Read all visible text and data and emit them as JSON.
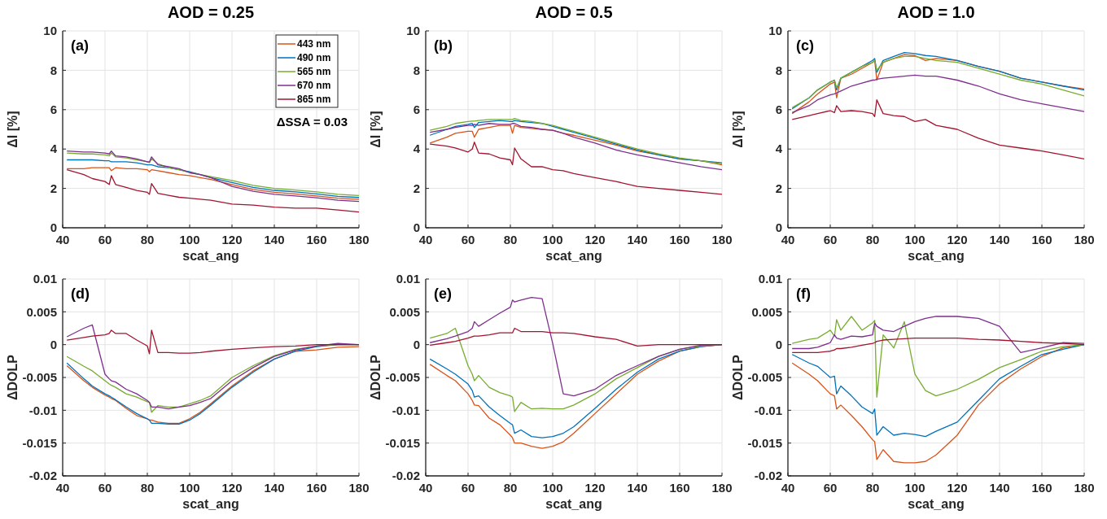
{
  "chart_data": [
    {
      "type": "line",
      "title": "AOD = 0.25",
      "xlabel": "scat_ang",
      "ylabel": "ΔI [%]",
      "annotations": [
        "(a)",
        "ΔSSA = 0.03"
      ],
      "legend": "top right",
      "grid": true,
      "x": [
        42,
        50,
        54,
        60,
        62,
        63,
        65,
        70,
        75,
        80,
        81,
        82,
        85,
        90,
        95,
        100,
        105,
        110,
        120,
        130,
        140,
        150,
        160,
        170,
        180
      ],
      "xlim": [
        40,
        180
      ],
      "xticks": [
        40,
        60,
        80,
        100,
        120,
        140,
        160,
        180
      ],
      "ylim": [
        0,
        10
      ],
      "yticks": [
        0,
        2,
        4,
        6,
        8,
        10
      ],
      "series": [
        {
          "name": "443 nm",
          "color": "#d95319",
          "values": [
            3.0,
            3.0,
            3.05,
            3.05,
            3.05,
            2.9,
            3.05,
            3.0,
            3.0,
            2.95,
            2.85,
            2.95,
            2.9,
            2.8,
            2.7,
            2.65,
            2.55,
            2.45,
            2.2,
            1.95,
            1.8,
            1.72,
            1.62,
            1.5,
            1.44
          ]
        },
        {
          "name": "490 nm",
          "color": "#0072bd",
          "values": [
            3.45,
            3.45,
            3.45,
            3.4,
            3.4,
            3.35,
            3.35,
            3.35,
            3.3,
            3.2,
            3.2,
            3.2,
            3.1,
            3.05,
            2.95,
            2.85,
            2.7,
            2.55,
            2.3,
            2.05,
            1.9,
            1.82,
            1.72,
            1.6,
            1.54
          ]
        },
        {
          "name": "565 nm",
          "color": "#77ac30",
          "values": [
            3.8,
            3.75,
            3.75,
            3.7,
            3.65,
            3.8,
            3.6,
            3.55,
            3.45,
            3.35,
            3.3,
            3.5,
            3.25,
            3.05,
            2.95,
            2.8,
            2.7,
            2.6,
            2.4,
            2.15,
            2.0,
            1.92,
            1.82,
            1.7,
            1.64
          ]
        },
        {
          "name": "670 nm",
          "color": "#7e2f8e",
          "values": [
            3.9,
            3.85,
            3.85,
            3.8,
            3.75,
            3.9,
            3.65,
            3.6,
            3.5,
            3.35,
            3.35,
            3.6,
            3.2,
            3.1,
            3.0,
            2.8,
            2.7,
            2.55,
            2.1,
            1.85,
            1.7,
            1.62,
            1.52,
            1.4,
            1.34
          ]
        },
        {
          "name": "865 nm",
          "color": "#a2142f",
          "values": [
            2.95,
            2.7,
            2.5,
            2.35,
            2.2,
            2.65,
            2.2,
            2.05,
            1.9,
            1.8,
            1.7,
            2.25,
            1.75,
            1.65,
            1.55,
            1.5,
            1.45,
            1.4,
            1.2,
            1.15,
            1.05,
            1.0,
            1.0,
            0.9,
            0.8
          ]
        }
      ]
    },
    {
      "type": "line",
      "title": "AOD = 0.5",
      "xlabel": "scat_ang",
      "ylabel": "ΔI [%]",
      "annotations": [
        "(b)"
      ],
      "grid": true,
      "x": [
        42,
        50,
        54,
        60,
        62,
        63,
        65,
        70,
        75,
        80,
        81,
        82,
        85,
        90,
        95,
        100,
        105,
        110,
        120,
        130,
        140,
        150,
        160,
        170,
        180
      ],
      "xlim": [
        40,
        180
      ],
      "xticks": [
        40,
        60,
        80,
        100,
        120,
        140,
        160,
        180
      ],
      "ylim": [
        0,
        10
      ],
      "yticks": [
        0,
        2,
        4,
        6,
        8,
        10
      ],
      "series": [
        {
          "color": "#d95319",
          "values": [
            4.3,
            4.6,
            4.8,
            4.9,
            4.9,
            4.6,
            5.0,
            5.1,
            5.2,
            5.2,
            4.8,
            5.2,
            5.1,
            5.05,
            5.0,
            4.95,
            4.8,
            4.7,
            4.45,
            4.2,
            3.9,
            3.7,
            3.5,
            3.4,
            3.2
          ]
        },
        {
          "color": "#0072bd",
          "values": [
            4.7,
            5.0,
            5.15,
            5.25,
            5.3,
            5.1,
            5.35,
            5.4,
            5.45,
            5.4,
            5.4,
            5.45,
            5.4,
            5.35,
            5.3,
            5.15,
            5.0,
            4.85,
            4.55,
            4.25,
            3.95,
            3.7,
            3.5,
            3.4,
            3.3
          ]
        },
        {
          "color": "#77ac30",
          "values": [
            4.95,
            5.15,
            5.3,
            5.4,
            5.42,
            5.42,
            5.45,
            5.5,
            5.5,
            5.5,
            5.5,
            5.55,
            5.45,
            5.4,
            5.3,
            5.2,
            5.05,
            4.9,
            4.6,
            4.3,
            4.0,
            3.75,
            3.55,
            3.4,
            3.25
          ]
        },
        {
          "color": "#7e2f8e",
          "values": [
            4.85,
            5.0,
            5.1,
            5.2,
            5.2,
            5.25,
            5.2,
            5.3,
            5.25,
            5.25,
            5.3,
            5.3,
            5.15,
            5.1,
            5.0,
            4.95,
            4.8,
            4.6,
            4.3,
            3.95,
            3.7,
            3.5,
            3.3,
            3.1,
            2.95
          ]
        },
        {
          "color": "#a2142f",
          "values": [
            4.25,
            4.15,
            4.05,
            3.85,
            4.0,
            4.35,
            3.8,
            3.75,
            3.55,
            3.45,
            3.2,
            4.05,
            3.5,
            3.1,
            3.1,
            2.95,
            2.9,
            2.75,
            2.55,
            2.35,
            2.1,
            2.0,
            1.9,
            1.8,
            1.7
          ]
        }
      ]
    },
    {
      "type": "line",
      "title": "AOD = 1.0",
      "xlabel": "scat_ang",
      "ylabel": "ΔI [%]",
      "annotations": [
        "(c)"
      ],
      "grid": true,
      "x": [
        42,
        50,
        54,
        60,
        62,
        63,
        65,
        70,
        75,
        80,
        81,
        82,
        85,
        90,
        95,
        100,
        105,
        110,
        120,
        130,
        140,
        150,
        160,
        170,
        180
      ],
      "xlim": [
        40,
        180
      ],
      "xticks": [
        40,
        60,
        80,
        100,
        120,
        140,
        160,
        180
      ],
      "ylim": [
        0,
        10
      ],
      "yticks": [
        0,
        2,
        4,
        6,
        8,
        10
      ],
      "series": [
        {
          "color": "#d95319",
          "values": [
            5.8,
            6.4,
            6.8,
            7.3,
            7.4,
            6.6,
            7.6,
            7.8,
            8.1,
            8.4,
            8.5,
            7.5,
            8.4,
            8.6,
            8.8,
            8.75,
            8.5,
            8.6,
            8.5,
            8.2,
            7.95,
            7.6,
            7.4,
            7.2,
            7.05
          ]
        },
        {
          "color": "#0072bd",
          "values": [
            6.05,
            6.6,
            7.0,
            7.4,
            7.5,
            7.0,
            7.6,
            7.9,
            8.2,
            8.5,
            8.6,
            7.9,
            8.5,
            8.7,
            8.9,
            8.85,
            8.75,
            8.7,
            8.5,
            8.2,
            7.95,
            7.6,
            7.4,
            7.2,
            7.0
          ]
        },
        {
          "color": "#77ac30",
          "values": [
            6.1,
            6.6,
            7.0,
            7.4,
            7.5,
            7.1,
            7.6,
            7.9,
            8.2,
            8.4,
            8.5,
            8.0,
            8.4,
            8.6,
            8.7,
            8.7,
            8.6,
            8.5,
            8.4,
            8.1,
            7.8,
            7.5,
            7.3,
            7.0,
            6.7
          ]
        },
        {
          "color": "#7e2f8e",
          "values": [
            5.85,
            6.2,
            6.5,
            6.75,
            6.8,
            6.85,
            6.95,
            7.2,
            7.35,
            7.5,
            7.5,
            7.55,
            7.6,
            7.65,
            7.7,
            7.75,
            7.7,
            7.7,
            7.5,
            7.2,
            6.8,
            6.5,
            6.3,
            6.1,
            5.9
          ]
        },
        {
          "color": "#a2142f",
          "values": [
            5.5,
            5.7,
            5.8,
            5.95,
            5.85,
            6.2,
            5.9,
            5.95,
            5.9,
            5.8,
            5.65,
            6.5,
            5.8,
            5.7,
            5.65,
            5.4,
            5.5,
            5.2,
            5.0,
            4.55,
            4.2,
            4.05,
            3.9,
            3.7,
            3.5
          ]
        }
      ]
    },
    {
      "type": "line",
      "xlabel": "scat_ang",
      "ylabel": "ΔDOLP",
      "annotations": [
        "(d)"
      ],
      "grid": true,
      "x": [
        42,
        50,
        54,
        60,
        62,
        63,
        65,
        70,
        75,
        80,
        81,
        82,
        85,
        90,
        95,
        100,
        105,
        110,
        120,
        130,
        140,
        150,
        160,
        170,
        180
      ],
      "xlim": [
        40,
        180
      ],
      "xticks": [
        40,
        60,
        80,
        100,
        120,
        140,
        160,
        180
      ],
      "ylim": [
        -0.02,
        0.01
      ],
      "yticks": [
        -0.02,
        -0.015,
        -0.01,
        -0.005,
        0,
        0.005,
        0.01
      ],
      "series": [
        {
          "color": "#d95319",
          "values": [
            -0.0032,
            -0.0055,
            -0.0065,
            -0.0077,
            -0.008,
            -0.0082,
            -0.0085,
            -0.0097,
            -0.0108,
            -0.0113,
            -0.0115,
            -0.0115,
            -0.0118,
            -0.012,
            -0.012,
            -0.0113,
            -0.0103,
            -0.009,
            -0.0063,
            -0.004,
            -0.0022,
            -0.001,
            -0.0008,
            -0.0004,
            -0.0003
          ]
        },
        {
          "color": "#0072bd",
          "values": [
            -0.0028,
            -0.0052,
            -0.0063,
            -0.0075,
            -0.0078,
            -0.008,
            -0.0084,
            -0.0095,
            -0.0105,
            -0.0113,
            -0.0115,
            -0.012,
            -0.012,
            -0.0121,
            -0.0121,
            -0.0115,
            -0.0105,
            -0.0092,
            -0.0065,
            -0.0042,
            -0.0022,
            -0.001,
            -0.0003,
            0.0,
            0.0
          ]
        },
        {
          "color": "#77ac30",
          "values": [
            -0.0018,
            -0.0033,
            -0.004,
            -0.0055,
            -0.006,
            -0.0062,
            -0.0065,
            -0.0075,
            -0.008,
            -0.0087,
            -0.0088,
            -0.0103,
            -0.0093,
            -0.0095,
            -0.0095,
            -0.009,
            -0.0085,
            -0.0078,
            -0.005,
            -0.0032,
            -0.0017,
            -0.0007,
            -0.0002,
            0.0,
            0.0
          ]
        },
        {
          "color": "#7e2f8e",
          "values": [
            0.0012,
            0.0025,
            0.003,
            -0.0045,
            -0.0052,
            -0.0055,
            -0.0057,
            -0.0068,
            -0.0075,
            -0.0085,
            -0.0088,
            -0.0095,
            -0.0095,
            -0.0098,
            -0.0095,
            -0.0093,
            -0.0088,
            -0.0082,
            -0.0055,
            -0.0035,
            -0.0018,
            -0.0008,
            -0.0002,
            0.0002,
            0.0
          ]
        },
        {
          "color": "#a2142f",
          "values": [
            0.0007,
            0.0011,
            0.0013,
            0.0015,
            0.0017,
            0.0022,
            0.0017,
            0.0017,
            0.0007,
            -0.0002,
            -0.0014,
            0.0022,
            -0.0012,
            -0.0012,
            -0.0013,
            -0.0013,
            -0.0012,
            -0.001,
            -0.0007,
            -0.0005,
            -0.0003,
            -0.0002,
            0.0,
            0.0,
            0.0
          ]
        }
      ]
    },
    {
      "type": "line",
      "xlabel": "scat_ang",
      "ylabel": "ΔDOLP",
      "annotations": [
        "(e)"
      ],
      "grid": true,
      "x": [
        42,
        50,
        54,
        60,
        62,
        63,
        65,
        70,
        75,
        80,
        81,
        82,
        85,
        90,
        95,
        100,
        105,
        110,
        120,
        130,
        140,
        150,
        160,
        170,
        180
      ],
      "xlim": [
        40,
        180
      ],
      "xticks": [
        40,
        60,
        80,
        100,
        120,
        140,
        160,
        180
      ],
      "ylim": [
        -0.02,
        0.01
      ],
      "yticks": [
        -0.02,
        -0.015,
        -0.01,
        -0.005,
        0,
        0.005,
        0.01
      ],
      "series": [
        {
          "color": "#d95319",
          "values": [
            -0.003,
            -0.0047,
            -0.0055,
            -0.0075,
            -0.0085,
            -0.0092,
            -0.0093,
            -0.0112,
            -0.0122,
            -0.0138,
            -0.0142,
            -0.015,
            -0.015,
            -0.0155,
            -0.0158,
            -0.0155,
            -0.0148,
            -0.0135,
            -0.0105,
            -0.0075,
            -0.0045,
            -0.0025,
            -0.001,
            -0.0003,
            0.0
          ]
        },
        {
          "color": "#0072bd",
          "values": [
            -0.0022,
            -0.0037,
            -0.0045,
            -0.006,
            -0.007,
            -0.008,
            -0.0078,
            -0.0095,
            -0.0108,
            -0.012,
            -0.0122,
            -0.0135,
            -0.013,
            -0.014,
            -0.0142,
            -0.014,
            -0.0135,
            -0.0125,
            -0.0097,
            -0.0068,
            -0.0042,
            -0.0022,
            -0.001,
            -0.0003,
            0.0
          ]
        },
        {
          "color": "#77ac30",
          "values": [
            0.001,
            0.0017,
            0.0025,
            -0.0032,
            -0.0045,
            -0.0055,
            -0.0047,
            -0.0065,
            -0.0073,
            -0.0078,
            -0.008,
            -0.0102,
            -0.0088,
            -0.0098,
            -0.0097,
            -0.0098,
            -0.0098,
            -0.0092,
            -0.0075,
            -0.0052,
            -0.0035,
            -0.0018,
            -0.0007,
            -0.0002,
            0.0
          ]
        },
        {
          "color": "#7e2f8e",
          "values": [
            0.0003,
            0.0009,
            0.0013,
            0.002,
            0.0025,
            0.0035,
            0.0028,
            0.0038,
            0.0048,
            0.0057,
            0.0068,
            0.0065,
            0.0068,
            0.0072,
            0.007,
            0.0002,
            -0.0075,
            -0.0078,
            -0.0068,
            -0.0047,
            -0.0032,
            -0.0018,
            -0.0007,
            -0.0001,
            0.0
          ]
        },
        {
          "color": "#a2142f",
          "values": [
            -0.0001,
            0.0003,
            0.0005,
            0.001,
            0.0012,
            0.0013,
            0.0013,
            0.0015,
            0.0018,
            0.0018,
            0.0018,
            0.0025,
            0.002,
            0.002,
            0.002,
            0.0018,
            0.0018,
            0.0017,
            0.0012,
            0.0008,
            -0.0002,
            0.0,
            0.0,
            0.0,
            0.0
          ]
        }
      ]
    },
    {
      "type": "line",
      "xlabel": "scat_ang",
      "ylabel": "ΔDOLP",
      "annotations": [
        "(f)"
      ],
      "grid": true,
      "x": [
        42,
        50,
        54,
        60,
        62,
        63,
        65,
        70,
        75,
        80,
        81,
        82,
        85,
        90,
        95,
        100,
        105,
        110,
        120,
        130,
        140,
        150,
        160,
        170,
        180
      ],
      "xlim": [
        40,
        180
      ],
      "xticks": [
        40,
        60,
        80,
        100,
        120,
        140,
        160,
        180
      ],
      "ylim": [
        -0.02,
        0.01
      ],
      "yticks": [
        -0.02,
        -0.015,
        -0.01,
        -0.005,
        0,
        0.005,
        0.01
      ],
      "series": [
        {
          "color": "#d95319",
          "values": [
            -0.0028,
            -0.0045,
            -0.0055,
            -0.0075,
            -0.0078,
            -0.0098,
            -0.0092,
            -0.0108,
            -0.0125,
            -0.0145,
            -0.0148,
            -0.0175,
            -0.016,
            -0.0178,
            -0.018,
            -0.018,
            -0.0178,
            -0.0168,
            -0.0138,
            -0.0092,
            -0.006,
            -0.0037,
            -0.0018,
            -0.0005,
            0.0
          ]
        },
        {
          "color": "#0072bd",
          "values": [
            -0.0015,
            -0.0028,
            -0.0033,
            -0.005,
            -0.0048,
            -0.0075,
            -0.0063,
            -0.0078,
            -0.0095,
            -0.0105,
            -0.0098,
            -0.0138,
            -0.0125,
            -0.0138,
            -0.0135,
            -0.0137,
            -0.014,
            -0.0132,
            -0.0118,
            -0.0085,
            -0.0052,
            -0.0033,
            -0.0015,
            -0.0007,
            0.0
          ]
        },
        {
          "color": "#77ac30",
          "values": [
            0.0002,
            0.0008,
            0.001,
            0.0022,
            0.0013,
            0.0038,
            0.0022,
            0.0043,
            0.0022,
            0.0033,
            0.0037,
            -0.008,
            0.0015,
            -0.0005,
            0.0035,
            -0.0045,
            -0.007,
            -0.0078,
            -0.0068,
            -0.0053,
            -0.0035,
            -0.0023,
            -0.001,
            -0.0003,
            0.0
          ]
        },
        {
          "color": "#7e2f8e",
          "values": [
            -0.0006,
            -0.0006,
            -0.0004,
            0.0003,
            0.0015,
            0.001,
            0.0008,
            0.0013,
            0.0012,
            0.0015,
            0.0033,
            0.0028,
            0.0022,
            0.002,
            0.0028,
            0.0035,
            0.004,
            0.0043,
            0.0043,
            0.004,
            0.0028,
            -0.0012,
            -0.0005,
            0.0003,
            0.0002
          ]
        },
        {
          "color": "#a2142f",
          "values": [
            -0.0012,
            -0.0012,
            -0.0012,
            -0.001,
            -0.0008,
            -0.0006,
            -0.0006,
            -0.0004,
            -0.0001,
            0.0002,
            0.0003,
            0.0005,
            0.0007,
            0.0008,
            0.0009,
            0.001,
            0.001,
            0.001,
            0.001,
            0.0008,
            0.0007,
            0.0005,
            0.0003,
            0.0002,
            0.0
          ]
        }
      ]
    }
  ]
}
